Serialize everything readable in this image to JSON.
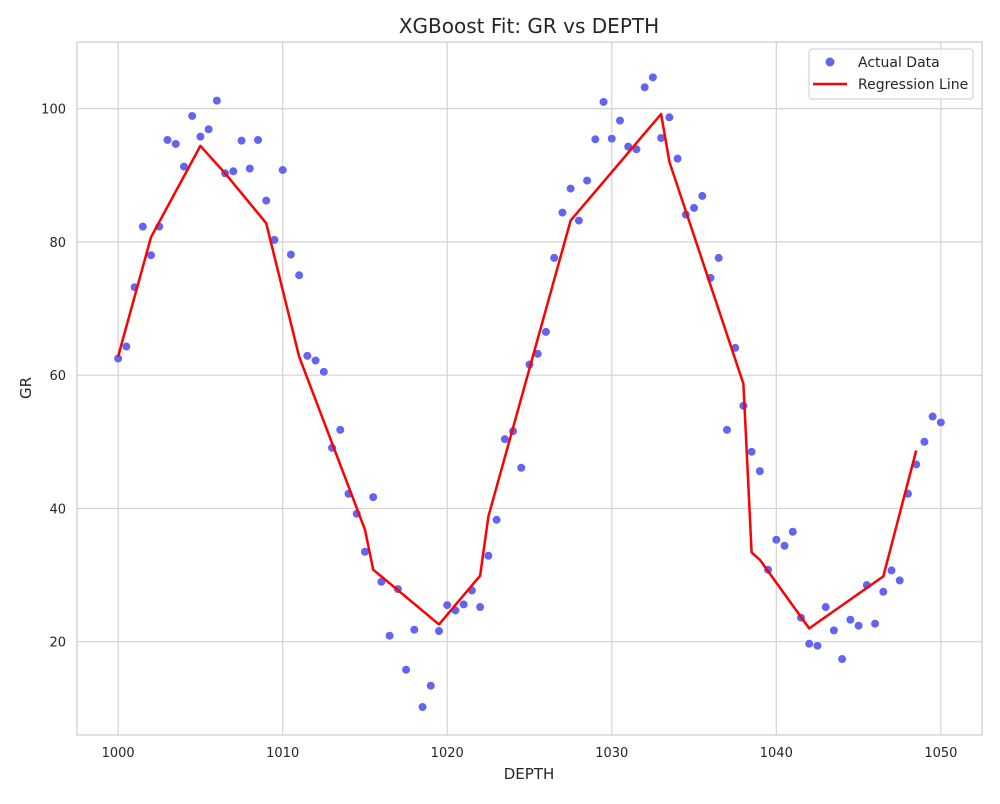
{
  "chart_data": {
    "type": "scatter",
    "title": "XGBoost Fit: GR vs DEPTH",
    "xlabel": "DEPTH",
    "ylabel": "GR",
    "xlim": [
      997.5,
      1052.5
    ],
    "ylim": [
      6,
      110
    ],
    "xticks": [
      1000,
      1010,
      1020,
      1030,
      1040,
      1050
    ],
    "yticks": [
      20,
      40,
      60,
      80,
      100
    ],
    "grid": true,
    "legend_position": "top-right",
    "colors": {
      "scatter": "#6464f0",
      "line": "#ff0000",
      "grid": "#d3d3d3",
      "frame": "#cccccc"
    },
    "series": [
      {
        "name": "Actual Data",
        "kind": "scatter",
        "x": [
          1000,
          1000.5,
          1001,
          1001.5,
          1002,
          1002.5,
          1003,
          1003.5,
          1004,
          1004.5,
          1005,
          1005.5,
          1006,
          1006.5,
          1007,
          1007.5,
          1008,
          1008.5,
          1009,
          1009.5,
          1010,
          1010.5,
          1011,
          1011.5,
          1012,
          1012.5,
          1013,
          1013.5,
          1014,
          1014.5,
          1015,
          1015.5,
          1016,
          1016.5,
          1017,
          1017.5,
          1018,
          1018.5,
          1019,
          1019.5,
          1020,
          1020.5,
          1021,
          1021.5,
          1022,
          1022.5,
          1023,
          1023.5,
          1024,
          1024.5,
          1025,
          1025.5,
          1026,
          1026.5,
          1027,
          1027.5,
          1028,
          1028.5,
          1029,
          1029.5,
          1030,
          1030.5,
          1031,
          1031.5,
          1032,
          1032.5,
          1033,
          1033.5,
          1034,
          1034.5,
          1035,
          1035.5,
          1036,
          1036.5,
          1037,
          1037.5,
          1038,
          1038.5,
          1039,
          1039.5,
          1040,
          1040.5,
          1041,
          1041.5,
          1042,
          1042.5,
          1043,
          1043.5,
          1044,
          1044.5,
          1045,
          1045.5,
          1046,
          1046.5,
          1047,
          1047.5,
          1048,
          1048.5,
          1049,
          1049.5,
          1050
        ],
        "y": [
          62.5,
          64.3,
          73.2,
          82.3,
          78.0,
          82.3,
          95.3,
          94.7,
          91.3,
          98.9,
          95.8,
          96.9,
          101.2,
          90.3,
          90.6,
          95.2,
          91.0,
          95.3,
          86.2,
          80.3,
          90.8,
          78.1,
          75.0,
          62.9,
          62.2,
          60.5,
          49.1,
          51.8,
          42.2,
          39.2,
          33.5,
          41.7,
          29.0,
          20.9,
          27.9,
          15.8,
          21.8,
          10.2,
          13.4,
          21.6,
          25.5,
          24.7,
          25.6,
          27.7,
          25.2,
          32.9,
          38.3,
          50.4,
          51.6,
          46.1,
          61.6,
          63.2,
          66.5,
          77.6,
          84.4,
          88.0,
          83.2,
          89.2,
          95.4,
          101.0,
          95.5,
          98.2,
          94.3,
          93.9,
          103.2,
          104.7,
          95.6,
          98.7,
          92.5,
          84.1,
          85.1,
          86.9,
          74.6,
          77.6,
          51.8,
          64.1,
          55.4,
          48.5,
          45.6,
          30.8,
          35.3,
          34.4,
          36.5,
          23.6,
          19.7,
          19.4,
          25.2,
          21.7,
          17.4,
          23.3,
          22.4,
          28.5,
          22.7,
          27.5,
          30.7,
          29.2,
          42.2,
          46.6,
          50.0,
          53.8,
          52.9
        ]
      },
      {
        "name": "Regression Line",
        "kind": "line",
        "x": [
          1000,
          1002,
          1005,
          1006.5,
          1009,
          1011,
          1015,
          1015.5,
          1019.5,
          1022,
          1022.5,
          1027.5,
          1033,
          1033.5,
          1038,
          1038.5,
          1039,
          1042,
          1046.5,
          1048.5
        ],
        "y": [
          62.8,
          80.7,
          94.4,
          90.3,
          82.8,
          62.8,
          36.8,
          30.8,
          22.6,
          29.9,
          38.8,
          83.2,
          99.2,
          92.0,
          58.7,
          33.4,
          32.3,
          22.0,
          29.8,
          48.7
        ]
      }
    ]
  }
}
